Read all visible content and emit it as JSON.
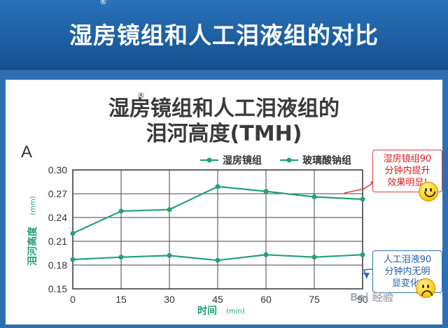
{
  "banner": {
    "title": "湿房镜组和人工泪液组的对比",
    "reg_mark": "®"
  },
  "chart_data": {
    "type": "line",
    "title_line1": "湿房镜组和人工泪液组的",
    "title_line2": "泪河高度(TMH)",
    "title_reg_mark": "®",
    "panel_label": "A",
    "xlabel": "时间",
    "xlabel_unit": "(min)",
    "ylabel": "泪河高度",
    "ylabel_unit": "(mm)",
    "x": [
      0,
      15,
      30,
      45,
      60,
      75,
      90
    ],
    "x_tick_labels": [
      "0",
      "15",
      "30",
      "45",
      "60",
      "75",
      "90"
    ],
    "y_tick_labels": [
      "0.30",
      "0.27",
      "0.24",
      "0.21",
      "0.18",
      "0.15"
    ],
    "xlim": [
      0,
      90
    ],
    "ylim": [
      0.15,
      0.3
    ],
    "y_ticks": [
      0.3,
      0.27,
      0.24,
      0.21,
      0.18,
      0.15
    ],
    "grid": true,
    "legend_position": "top",
    "series": [
      {
        "name": "湿房镜组",
        "values": [
          0.22,
          0.248,
          0.25,
          0.279,
          0.273,
          0.266,
          0.263
        ],
        "color": "#22a36e"
      },
      {
        "name": "玻璃酸钠组",
        "values": [
          0.187,
          0.19,
          0.192,
          0.186,
          0.193,
          0.19,
          0.193
        ],
        "color": "#22a36e"
      }
    ],
    "annotations": [
      {
        "text_lines": [
          "湿房镜组90",
          "分钟内提升",
          "效果明显!"
        ],
        "color": "#d42020",
        "icon": "smile-icon"
      },
      {
        "text_lines": [
          "人工泪液90",
          "分钟内无明",
          "显变化!"
        ],
        "color": "#2160a5",
        "icon": "frown-icon"
      }
    ]
  },
  "watermark": {
    "text": "Bai 经验"
  }
}
